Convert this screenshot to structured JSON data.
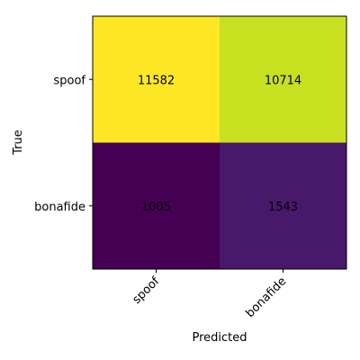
{
  "chart_data": {
    "type": "heatmap",
    "title": "",
    "xlabel": "Predicted",
    "ylabel": "True",
    "x_categories": [
      "spoof",
      "bonafide"
    ],
    "y_categories": [
      "spoof",
      "bonafide"
    ],
    "values": [
      [
        11582,
        10714
      ],
      [
        1005,
        1543
      ]
    ],
    "cell_colors": [
      [
        "#fde725",
        "#c8e020"
      ],
      [
        "#440154",
        "#48186a"
      ]
    ],
    "colormap": "viridis",
    "grid": false
  }
}
